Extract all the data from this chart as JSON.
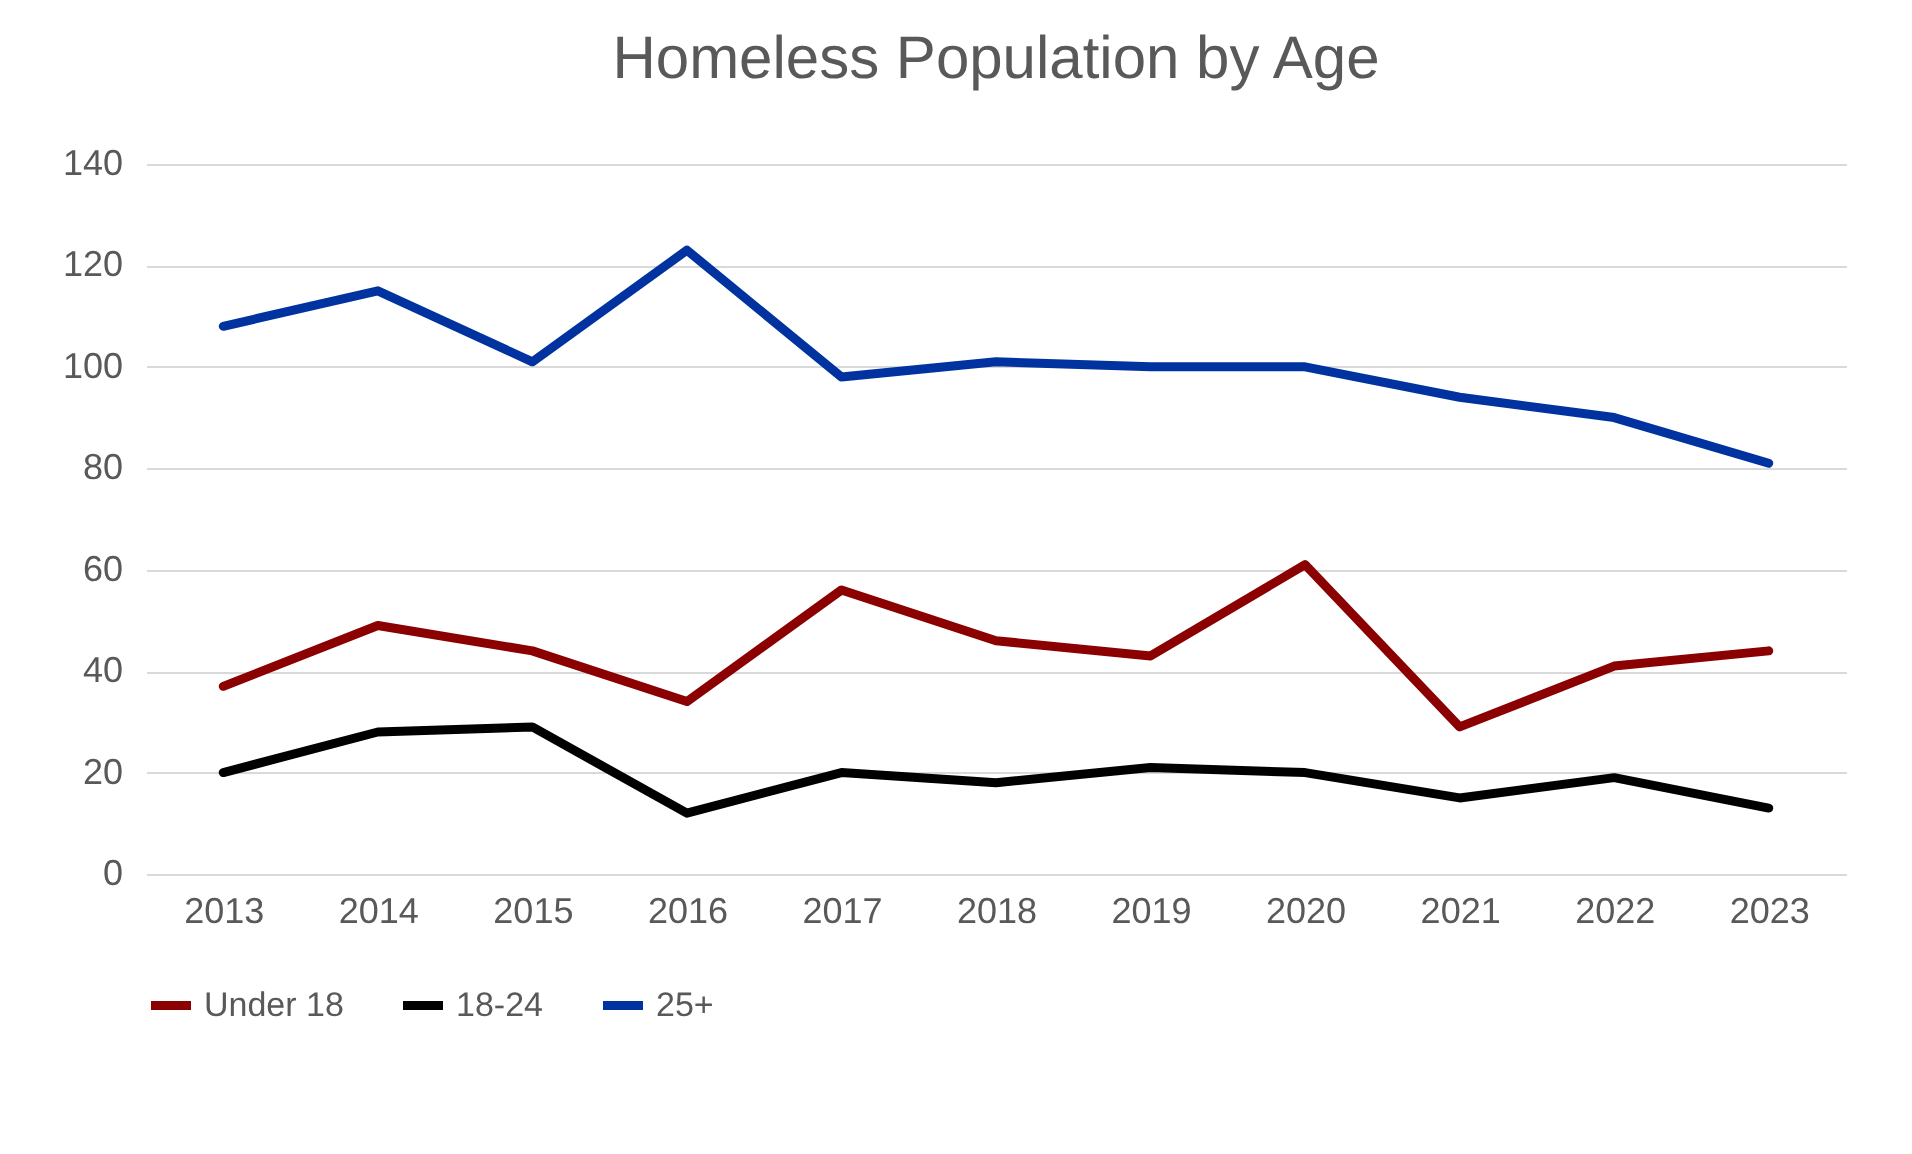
{
  "chart_data": {
    "type": "line",
    "title": "Homeless Population by Age",
    "categories": [
      "2013",
      "2014",
      "2015",
      "2016",
      "2017",
      "2018",
      "2019",
      "2020",
      "2021",
      "2022",
      "2023"
    ],
    "series": [
      {
        "name": "Under 18",
        "color": "#8b0000",
        "values": [
          37,
          49,
          44,
          34,
          56,
          46,
          43,
          61,
          29,
          41,
          44
        ]
      },
      {
        "name": "18-24",
        "color": "#000000",
        "values": [
          20,
          28,
          29,
          12,
          20,
          18,
          21,
          20,
          15,
          19,
          13
        ]
      },
      {
        "name": "25+",
        "color": "#0033a0",
        "values": [
          108,
          115,
          101,
          123,
          98,
          101,
          100,
          100,
          94,
          90,
          81
        ]
      }
    ],
    "ylim": [
      0,
      140
    ],
    "yticks": [
      0,
      20,
      40,
      60,
      80,
      100,
      120,
      140
    ],
    "grid": "y",
    "legend": "bottom",
    "marker": "none",
    "line_style": "solid"
  }
}
